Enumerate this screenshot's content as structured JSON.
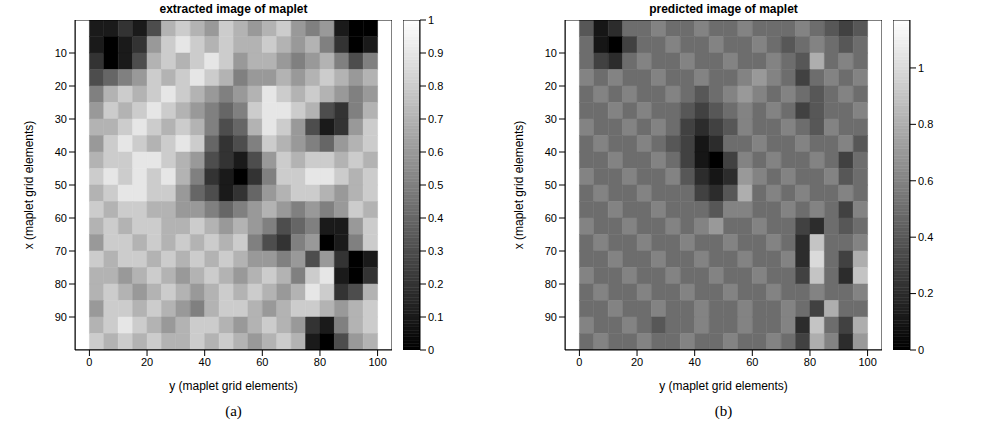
{
  "chart_data": [
    {
      "type": "heatmap",
      "title": "extracted image of maplet",
      "caption": "(a)",
      "xlabel": "y (maplet grid elements)",
      "ylabel": "x (maplet grid elements)",
      "xlim": [
        -5,
        105
      ],
      "xticks": [
        0,
        20,
        40,
        60,
        80,
        100
      ],
      "ylim": [
        0,
        100
      ],
      "yticks": [
        10,
        20,
        30,
        40,
        50,
        60,
        70,
        80,
        90
      ],
      "x_edges": [
        0,
        5,
        10,
        15,
        20,
        25,
        30,
        35,
        40,
        45,
        50,
        55,
        60,
        65,
        70,
        75,
        80,
        85,
        90,
        95,
        100
      ],
      "y_edges": [
        0,
        5,
        10,
        15,
        20,
        25,
        30,
        35,
        40,
        45,
        50,
        55,
        60,
        65,
        70,
        75,
        80,
        85,
        90,
        95,
        100
      ],
      "cells": [
        [
          0.1,
          0.1,
          0.2,
          0.1,
          0.3,
          0.7,
          0.8,
          0.7,
          0.6,
          0.8,
          0.7,
          0.6,
          0.7,
          0.8,
          0.6,
          0.5,
          0.6,
          0.1,
          0.0,
          0.0
        ],
        [
          0.1,
          0.0,
          0.1,
          0.2,
          0.6,
          0.8,
          0.9,
          0.8,
          0.7,
          0.8,
          0.7,
          0.7,
          0.8,
          0.7,
          0.6,
          0.7,
          0.5,
          0.2,
          0.0,
          0.1
        ],
        [
          0.2,
          0.0,
          0.1,
          0.3,
          0.7,
          0.8,
          0.7,
          0.8,
          0.9,
          0.8,
          0.6,
          0.7,
          0.7,
          0.6,
          0.5,
          0.6,
          0.7,
          0.5,
          0.3,
          0.5
        ],
        [
          0.3,
          0.4,
          0.5,
          0.6,
          0.8,
          0.7,
          0.8,
          0.9,
          0.8,
          0.7,
          0.5,
          0.6,
          0.6,
          0.7,
          0.6,
          0.7,
          0.8,
          0.7,
          0.6,
          0.7
        ],
        [
          0.5,
          0.7,
          0.8,
          0.7,
          0.8,
          0.9,
          0.8,
          0.7,
          0.6,
          0.5,
          0.6,
          0.7,
          0.9,
          0.8,
          0.7,
          0.8,
          0.7,
          0.6,
          0.5,
          0.6
        ],
        [
          0.6,
          0.8,
          0.7,
          0.8,
          0.9,
          0.8,
          0.7,
          0.6,
          0.5,
          0.4,
          0.5,
          0.8,
          0.9,
          0.9,
          0.8,
          0.7,
          0.3,
          0.2,
          0.5,
          0.7
        ],
        [
          0.7,
          0.7,
          0.8,
          0.9,
          0.8,
          0.7,
          0.8,
          0.7,
          0.5,
          0.3,
          0.4,
          0.7,
          0.9,
          0.8,
          0.6,
          0.3,
          0.1,
          0.2,
          0.6,
          0.8
        ],
        [
          0.6,
          0.8,
          0.9,
          0.8,
          0.7,
          0.8,
          0.9,
          0.8,
          0.4,
          0.2,
          0.3,
          0.5,
          0.8,
          0.7,
          0.6,
          0.5,
          0.4,
          0.6,
          0.7,
          0.8
        ],
        [
          0.7,
          0.8,
          0.8,
          0.9,
          0.9,
          0.8,
          0.7,
          0.6,
          0.3,
          0.2,
          0.1,
          0.3,
          0.6,
          0.8,
          0.7,
          0.8,
          0.8,
          0.7,
          0.8,
          0.7
        ],
        [
          0.8,
          0.9,
          0.8,
          0.9,
          0.8,
          0.9,
          0.7,
          0.5,
          0.2,
          0.1,
          0.0,
          0.2,
          0.5,
          0.8,
          0.8,
          0.9,
          0.9,
          0.8,
          0.7,
          0.8
        ],
        [
          0.7,
          0.8,
          0.9,
          0.9,
          0.8,
          0.8,
          0.6,
          0.4,
          0.3,
          0.1,
          0.2,
          0.4,
          0.6,
          0.7,
          0.8,
          0.8,
          0.7,
          0.6,
          0.7,
          0.8
        ],
        [
          0.8,
          0.7,
          0.8,
          0.8,
          0.7,
          0.7,
          0.6,
          0.6,
          0.5,
          0.4,
          0.5,
          0.6,
          0.7,
          0.6,
          0.5,
          0.6,
          0.5,
          0.6,
          0.8,
          0.7
        ],
        [
          0.7,
          0.8,
          0.7,
          0.8,
          0.8,
          0.7,
          0.7,
          0.8,
          0.7,
          0.6,
          0.7,
          0.6,
          0.5,
          0.3,
          0.4,
          0.5,
          0.1,
          0.1,
          0.6,
          0.8
        ],
        [
          0.6,
          0.8,
          0.8,
          0.7,
          0.8,
          0.7,
          0.8,
          0.7,
          0.8,
          0.7,
          0.8,
          0.5,
          0.3,
          0.2,
          0.5,
          0.6,
          0.0,
          0.1,
          0.5,
          0.8
        ],
        [
          0.8,
          0.7,
          0.8,
          0.8,
          0.7,
          0.8,
          0.7,
          0.8,
          0.7,
          0.8,
          0.7,
          0.6,
          0.6,
          0.5,
          0.6,
          0.3,
          0.6,
          0.2,
          0.0,
          0.1
        ],
        [
          0.7,
          0.7,
          0.6,
          0.7,
          0.8,
          0.7,
          0.6,
          0.7,
          0.8,
          0.7,
          0.6,
          0.7,
          0.8,
          0.7,
          0.5,
          0.8,
          0.9,
          0.1,
          0.0,
          0.2
        ],
        [
          0.7,
          0.8,
          0.7,
          0.6,
          0.7,
          0.8,
          0.7,
          0.6,
          0.7,
          0.8,
          0.7,
          0.8,
          0.7,
          0.6,
          0.7,
          0.9,
          0.8,
          0.2,
          0.3,
          0.7
        ],
        [
          0.6,
          0.8,
          0.8,
          0.7,
          0.8,
          0.7,
          0.6,
          0.5,
          0.7,
          0.8,
          0.8,
          0.7,
          0.6,
          0.7,
          0.8,
          0.8,
          0.7,
          0.6,
          0.7,
          0.8
        ],
        [
          0.7,
          0.8,
          0.9,
          0.8,
          0.7,
          0.6,
          0.7,
          0.8,
          0.8,
          0.7,
          0.6,
          0.7,
          0.8,
          0.7,
          0.6,
          0.2,
          0.1,
          0.5,
          0.7,
          0.8
        ],
        [
          0.8,
          0.7,
          0.8,
          0.7,
          0.8,
          0.7,
          0.7,
          0.8,
          0.7,
          0.8,
          0.7,
          0.6,
          0.7,
          0.8,
          0.7,
          0.1,
          0.0,
          0.3,
          0.6,
          0.7
        ]
      ],
      "colorbar_range": [
        0,
        1
      ],
      "colorbar_ticks": [
        0,
        0.1,
        0.2,
        0.3,
        0.4,
        0.5,
        0.6,
        0.7,
        0.8,
        0.9,
        1
      ]
    },
    {
      "type": "heatmap",
      "title": "predicted image of maplet",
      "caption": "(b)",
      "xlabel": "y (maplet grid elements)",
      "ylabel": "x (maplet grid elements)",
      "xlim": [
        -5,
        105
      ],
      "xticks": [
        0,
        20,
        40,
        60,
        80,
        100
      ],
      "ylim": [
        0,
        100
      ],
      "yticks": [
        10,
        20,
        30,
        40,
        50,
        60,
        70,
        80,
        90
      ],
      "x_edges": [
        0,
        5,
        10,
        15,
        20,
        25,
        30,
        35,
        40,
        45,
        50,
        55,
        60,
        65,
        70,
        75,
        80,
        85,
        90,
        95,
        100
      ],
      "y_edges": [
        0,
        5,
        10,
        15,
        20,
        25,
        30,
        35,
        40,
        45,
        50,
        55,
        60,
        65,
        70,
        75,
        80,
        85,
        90,
        95,
        100
      ],
      "cells": [
        [
          0.4,
          0.1,
          0.2,
          0.5,
          0.5,
          0.6,
          0.5,
          0.5,
          0.6,
          0.5,
          0.5,
          0.6,
          0.5,
          0.5,
          0.5,
          0.6,
          0.5,
          0.4,
          0.3,
          0.4
        ],
        [
          0.5,
          0.1,
          0.0,
          0.3,
          0.5,
          0.5,
          0.6,
          0.5,
          0.5,
          0.6,
          0.5,
          0.5,
          0.6,
          0.5,
          0.4,
          0.5,
          0.6,
          0.5,
          0.4,
          0.5
        ],
        [
          0.5,
          0.3,
          0.2,
          0.5,
          0.6,
          0.5,
          0.5,
          0.6,
          0.5,
          0.5,
          0.6,
          0.5,
          0.5,
          0.6,
          0.5,
          0.4,
          0.8,
          0.5,
          0.6,
          0.5
        ],
        [
          0.6,
          0.5,
          0.6,
          0.5,
          0.5,
          0.6,
          0.5,
          0.5,
          0.6,
          0.5,
          0.5,
          0.6,
          0.7,
          0.6,
          0.5,
          0.3,
          0.5,
          0.6,
          0.5,
          0.6
        ],
        [
          0.5,
          0.6,
          0.5,
          0.6,
          0.5,
          0.5,
          0.6,
          0.5,
          0.4,
          0.5,
          0.6,
          0.7,
          0.6,
          0.5,
          0.6,
          0.5,
          0.4,
          0.5,
          0.6,
          0.5
        ],
        [
          0.5,
          0.5,
          0.6,
          0.5,
          0.6,
          0.5,
          0.5,
          0.4,
          0.3,
          0.4,
          0.5,
          0.6,
          0.5,
          0.6,
          0.5,
          0.3,
          0.4,
          0.5,
          0.5,
          0.6
        ],
        [
          0.6,
          0.5,
          0.5,
          0.6,
          0.5,
          0.6,
          0.5,
          0.3,
          0.2,
          0.3,
          0.4,
          0.6,
          0.5,
          0.5,
          0.6,
          0.5,
          0.4,
          0.6,
          0.5,
          0.5
        ],
        [
          0.5,
          0.6,
          0.5,
          0.5,
          0.6,
          0.5,
          0.4,
          0.3,
          0.1,
          0.2,
          0.5,
          0.5,
          0.6,
          0.5,
          0.5,
          0.6,
          0.5,
          0.5,
          0.6,
          0.4
        ],
        [
          0.5,
          0.5,
          0.6,
          0.5,
          0.5,
          0.6,
          0.5,
          0.3,
          0.1,
          0.0,
          0.3,
          0.6,
          0.5,
          0.6,
          0.5,
          0.5,
          0.6,
          0.5,
          0.3,
          0.5
        ],
        [
          0.6,
          0.5,
          0.5,
          0.6,
          0.5,
          0.5,
          0.6,
          0.4,
          0.2,
          0.1,
          0.2,
          0.7,
          0.6,
          0.5,
          0.6,
          0.5,
          0.5,
          0.6,
          0.4,
          0.5
        ],
        [
          0.5,
          0.6,
          0.5,
          0.5,
          0.6,
          0.5,
          0.5,
          0.5,
          0.3,
          0.2,
          0.4,
          0.8,
          0.5,
          0.6,
          0.5,
          0.6,
          0.5,
          0.5,
          0.6,
          0.5
        ],
        [
          0.5,
          0.5,
          0.6,
          0.5,
          0.5,
          0.6,
          0.5,
          0.5,
          0.5,
          0.4,
          0.6,
          0.6,
          0.5,
          0.5,
          0.6,
          0.5,
          0.6,
          0.5,
          0.3,
          0.6
        ],
        [
          0.6,
          0.5,
          0.5,
          0.6,
          0.5,
          0.5,
          0.6,
          0.5,
          0.6,
          0.7,
          0.5,
          0.5,
          0.6,
          0.5,
          0.5,
          0.3,
          0.2,
          0.5,
          0.4,
          0.5
        ],
        [
          0.5,
          0.6,
          0.5,
          0.5,
          0.6,
          0.5,
          0.5,
          0.6,
          0.5,
          0.5,
          0.6,
          0.5,
          0.5,
          0.6,
          0.5,
          0.2,
          0.9,
          0.5,
          0.5,
          0.6
        ],
        [
          0.5,
          0.5,
          0.6,
          0.5,
          0.5,
          0.6,
          0.5,
          0.5,
          0.6,
          0.5,
          0.5,
          0.6,
          0.5,
          0.5,
          0.6,
          0.2,
          1.0,
          0.5,
          0.3,
          0.8
        ],
        [
          0.6,
          0.5,
          0.5,
          0.6,
          0.5,
          0.5,
          0.6,
          0.5,
          0.5,
          0.6,
          0.5,
          0.5,
          0.6,
          0.5,
          0.5,
          0.3,
          0.9,
          0.5,
          0.2,
          0.9
        ],
        [
          0.5,
          0.6,
          0.5,
          0.5,
          0.6,
          0.5,
          0.5,
          0.6,
          0.5,
          0.5,
          0.6,
          0.5,
          0.5,
          0.6,
          0.5,
          0.5,
          0.6,
          0.5,
          0.5,
          0.6
        ],
        [
          0.5,
          0.5,
          0.6,
          0.5,
          0.5,
          0.6,
          0.5,
          0.5,
          0.6,
          0.5,
          0.5,
          0.6,
          0.5,
          0.5,
          0.6,
          0.5,
          0.3,
          0.8,
          0.5,
          0.5
        ],
        [
          0.6,
          0.5,
          0.5,
          0.6,
          0.5,
          0.4,
          0.5,
          0.5,
          0.6,
          0.5,
          0.5,
          0.6,
          0.5,
          0.5,
          0.6,
          0.2,
          0.9,
          0.5,
          0.3,
          0.8
        ],
        [
          0.5,
          0.6,
          0.5,
          0.5,
          0.6,
          0.5,
          0.5,
          0.6,
          0.5,
          0.5,
          0.6,
          0.5,
          0.5,
          0.6,
          0.5,
          0.3,
          0.8,
          0.6,
          0.2,
          0.7
        ]
      ],
      "colorbar_range": [
        0,
        1.17
      ],
      "colorbar_ticks": [
        0,
        0.2,
        0.4,
        0.6,
        0.8,
        1
      ]
    }
  ]
}
